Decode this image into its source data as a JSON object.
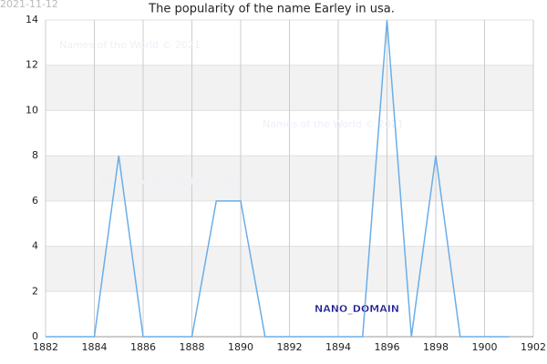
{
  "chart_data": {
    "type": "line",
    "title": "The popularity of the name Earley in usa.",
    "date_stamp": "2021-11-12",
    "watermarks": [
      "Names of the World © 2021",
      "Names of the World © 2021",
      "Names of the World © 2021"
    ],
    "brand": "NANO_DOMAIN",
    "x": [
      1882,
      1883,
      1884,
      1885,
      1886,
      1887,
      1888,
      1889,
      1890,
      1891,
      1892,
      1893,
      1894,
      1895,
      1896,
      1897,
      1898,
      1899,
      1900,
      1901
    ],
    "series": [
      {
        "name": "Earley",
        "color": "#6aaee8",
        "values": [
          0,
          0,
          0,
          8,
          0,
          0,
          0,
          6,
          6,
          0,
          0,
          0,
          0,
          0,
          14,
          0,
          8,
          0,
          0,
          0
        ]
      }
    ],
    "xlim": [
      1882,
      1902
    ],
    "xticks": [
      1882,
      1884,
      1886,
      1888,
      1890,
      1892,
      1894,
      1896,
      1898,
      1900,
      1902
    ],
    "ylim": [
      0,
      14
    ],
    "yticks": [
      0,
      2,
      4,
      6,
      8,
      10,
      12,
      14
    ],
    "grid": true
  }
}
